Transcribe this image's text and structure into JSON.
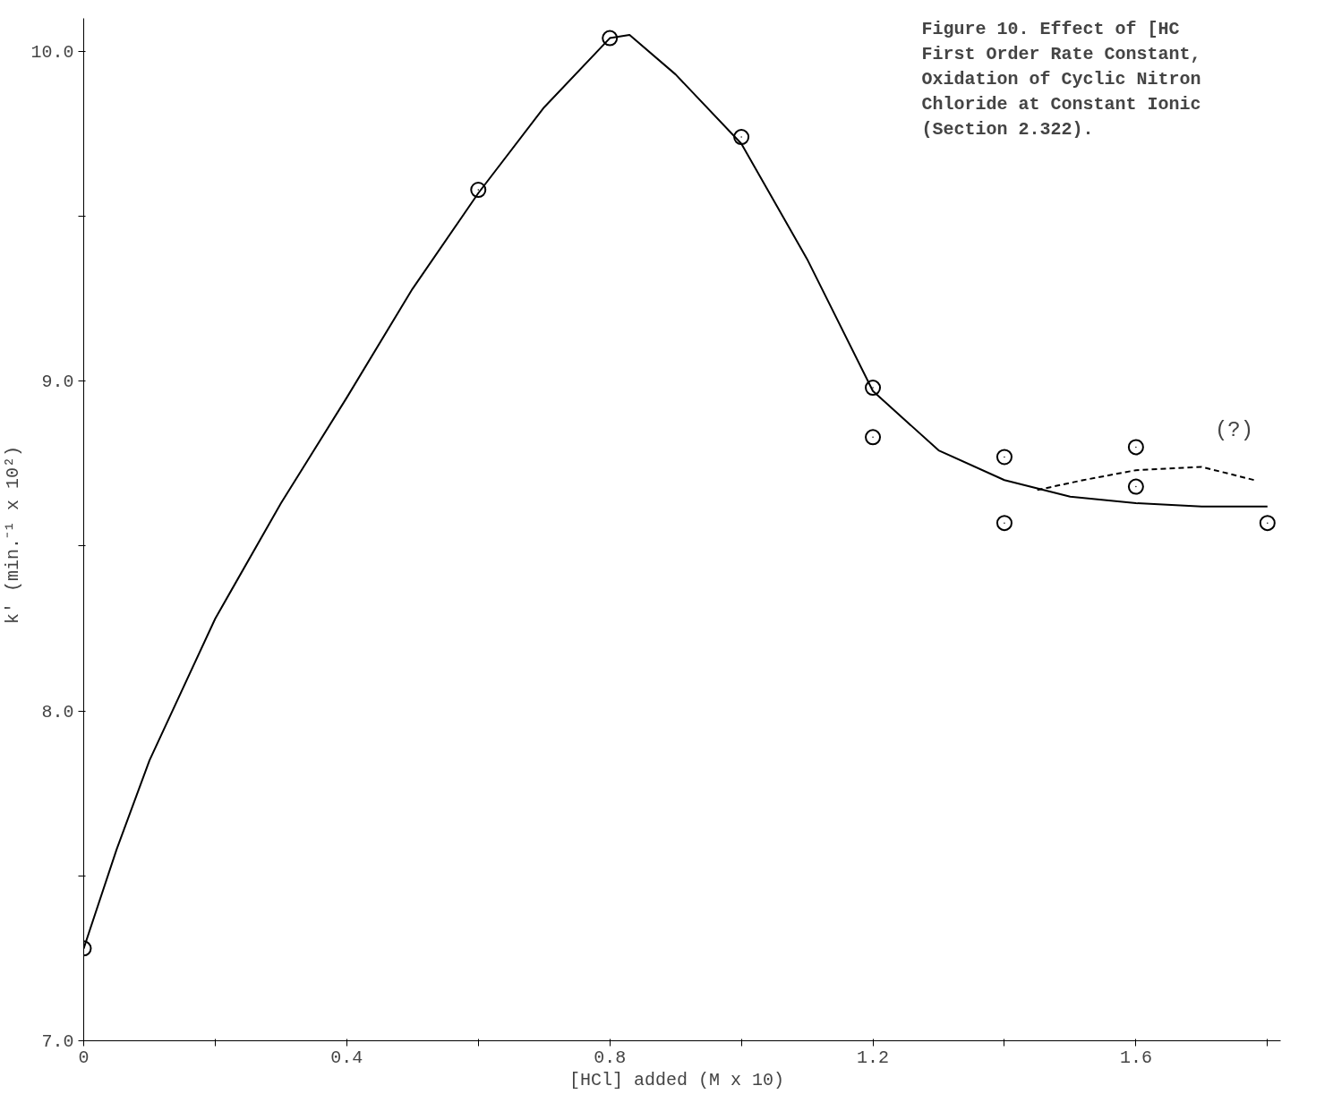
{
  "chart_data": {
    "type": "scatter",
    "title": "Figure 10.   Effect of [HC\nFirst Order Rate Constant,\nOxidation of Cyclic Nitron\nChloride at Constant Ionic\n(Section 2.322).",
    "xlabel": "[HCl] added  (M x 10)",
    "ylabel": "k'  (min.⁻¹ x 10²)",
    "xlim": [
      0,
      1.82
    ],
    "ylim": [
      7,
      10.1
    ],
    "xticks": [
      0,
      {
        "value": 0.2,
        "label": null
      },
      0.4,
      {
        "value": 0.6,
        "label": null
      },
      0.8,
      {
        "value": 1.0,
        "label": null
      },
      1.2,
      {
        "value": 1.4,
        "label": null
      },
      1.6,
      {
        "value": 1.8,
        "label": null
      }
    ],
    "yticks": [
      {
        "value": 7,
        "label": "7.0"
      },
      {
        "value": 7.5,
        "label": null
      },
      {
        "value": 8,
        "label": "8.0"
      },
      {
        "value": 8.5,
        "label": null
      },
      {
        "value": 9,
        "label": "9.0"
      },
      {
        "value": 9.5,
        "label": null
      },
      {
        "value": 10,
        "label": "10.0"
      }
    ],
    "grid": false,
    "series": [
      {
        "marker": "circle",
        "color": "#000000",
        "x": [
          0,
          0.6,
          0.8,
          1.0,
          1.2,
          1.2,
          1.4,
          1.4,
          1.6,
          1.6,
          1.8
        ],
        "values": [
          7.28,
          9.58,
          10.04,
          9.74,
          8.98,
          8.83,
          8.77,
          8.57,
          8.8,
          8.68,
          8.57
        ]
      },
      {
        "type": "line",
        "marker": "none",
        "line_style": "solid",
        "color": "#000000",
        "x": [
          0,
          0.05,
          0.1,
          0.2,
          0.3,
          0.4,
          0.5,
          0.6,
          0.7,
          0.8,
          0.83,
          0.9,
          1.0,
          1.1,
          1.2,
          1.3,
          1.4,
          1.5,
          1.6,
          1.7,
          1.8
        ],
        "values": [
          7.28,
          7.58,
          7.85,
          8.28,
          8.63,
          8.95,
          9.28,
          9.57,
          9.83,
          10.04,
          10.05,
          9.93,
          9.72,
          9.37,
          8.97,
          8.79,
          8.7,
          8.65,
          8.63,
          8.62,
          8.62
        ]
      },
      {
        "type": "line",
        "marker": "none",
        "line_style": "dashed",
        "color": "#000000",
        "x": [
          1.45,
          1.52,
          1.6,
          1.7,
          1.78
        ],
        "values": [
          8.67,
          8.7,
          8.73,
          8.74,
          8.7
        ]
      }
    ],
    "annotations": [
      "(?)"
    ]
  }
}
